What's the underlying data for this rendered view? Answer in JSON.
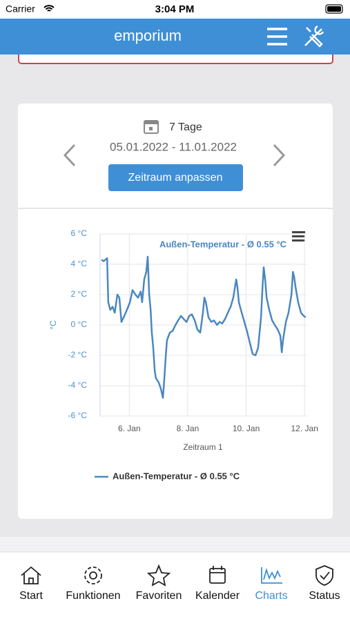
{
  "status_bar": {
    "carrier": "Carrier",
    "time": "3:04 PM"
  },
  "header": {
    "title": "emporium"
  },
  "date_range": {
    "period": "7 Tage",
    "range": "05.01.2022 - 11.01.2022",
    "button": "Zeitraum anpassen"
  },
  "chart_data": {
    "type": "line",
    "title": "Außen-Temperatur - Ø 0.55 °C",
    "x_label": "Zeitraum 1",
    "y_label": "°C",
    "x": [
      5.05,
      5.12,
      5.24,
      5.28,
      5.35,
      5.43,
      5.5,
      5.59,
      5.66,
      5.73,
      5.83,
      5.92,
      6.02,
      6.11,
      6.21,
      6.3,
      6.39,
      6.44,
      6.51,
      6.58,
      6.63,
      6.68,
      6.73,
      6.77,
      6.82,
      6.87,
      6.91,
      7.01,
      7.08,
      7.15,
      7.2,
      7.25,
      7.29,
      7.39,
      7.48,
      7.58,
      7.67,
      7.77,
      7.86,
      7.96,
      8.05,
      8.14,
      8.24,
      8.33,
      8.43,
      8.52,
      8.57,
      8.62,
      8.71,
      8.81,
      8.9,
      9.0,
      9.09,
      9.18,
      9.28,
      9.37,
      9.47,
      9.56,
      9.66,
      9.7,
      9.75,
      9.85,
      9.94,
      10.04,
      10.13,
      10.22,
      10.32,
      10.41,
      10.51,
      10.56,
      10.6,
      10.65,
      10.7,
      10.79,
      10.89,
      10.98,
      11.08,
      11.17,
      11.22,
      11.26,
      11.36,
      11.45,
      11.55,
      11.6,
      11.64,
      11.69,
      11.78,
      11.88,
      11.97,
      12.04
    ],
    "series": [
      {
        "name": "Außen-Temperatur - Ø 0.55 °C",
        "color": "#4a87c0",
        "values": [
          4.3,
          4.2,
          4.4,
          1.5,
          1.0,
          1.2,
          0.8,
          2.0,
          1.8,
          0.2,
          0.6,
          1.0,
          1.5,
          2.3,
          2.0,
          1.8,
          2.2,
          1.5,
          3.0,
          3.5,
          4.5,
          2.0,
          1.0,
          -0.5,
          -1.5,
          -3.0,
          -3.5,
          -3.8,
          -4.2,
          -4.8,
          -3.5,
          -2.0,
          -1.0,
          -0.5,
          -0.4,
          0.0,
          0.3,
          0.6,
          0.4,
          0.2,
          0.6,
          0.7,
          0.3,
          -0.3,
          -0.5,
          0.8,
          1.8,
          1.5,
          0.5,
          0.2,
          0.3,
          0.0,
          0.2,
          0.1,
          0.4,
          0.8,
          1.2,
          1.8,
          3.0,
          2.5,
          1.5,
          0.8,
          0.2,
          -0.5,
          -1.2,
          -1.9,
          -2.0,
          -1.5,
          0.5,
          2.5,
          3.8,
          3.0,
          1.8,
          1.0,
          0.3,
          0.0,
          -0.3,
          -0.7,
          -1.8,
          -1.0,
          0.2,
          0.8,
          2.0,
          3.5,
          3.2,
          2.5,
          1.5,
          0.8,
          0.6,
          0.5
        ]
      }
    ],
    "xlim": [
      5,
      12.09
    ],
    "ylim": [
      -6,
      6
    ],
    "xticks": [
      {
        "value": 6,
        "label": "6. Jan"
      },
      {
        "value": 8,
        "label": "8. Jan"
      },
      {
        "value": 10,
        "label": "10. Jan"
      },
      {
        "value": 12,
        "label": "12. Jan"
      }
    ],
    "yticks": [
      {
        "value": -6,
        "label": "-6 °C"
      },
      {
        "value": -4,
        "label": "-4 °C"
      },
      {
        "value": -2,
        "label": "-2 °C"
      },
      {
        "value": 0,
        "label": "0 °C"
      },
      {
        "value": 2,
        "label": "2 °C"
      },
      {
        "value": 4,
        "label": "4 °C"
      },
      {
        "value": 6,
        "label": "6 °C"
      }
    ],
    "grid": true
  },
  "tab_bar": {
    "items": [
      "Start",
      "Funktionen",
      "Favoriten",
      "Kalender",
      "Charts",
      "Status"
    ],
    "active": 4
  }
}
